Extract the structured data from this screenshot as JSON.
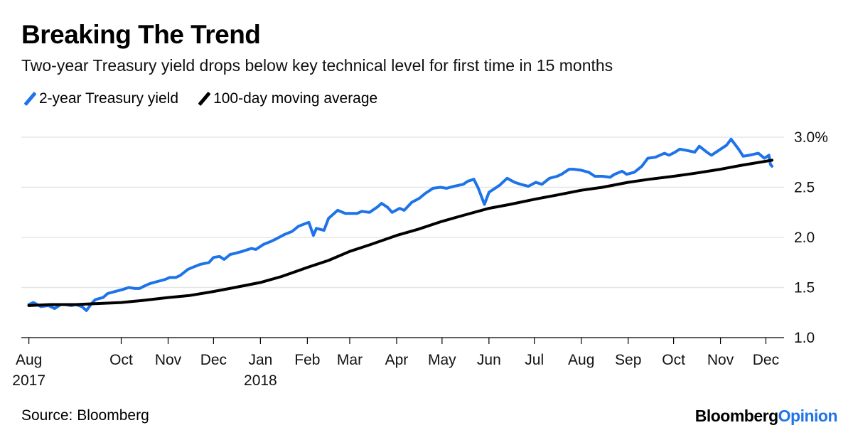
{
  "header": {
    "title": "Breaking The Trend",
    "subtitle": "Two-year Treasury yield drops below key technical level for first time in 15 months"
  },
  "footer": {
    "source": "Source: Bloomberg",
    "brand_part1": "Bloomberg",
    "brand_part2": "Opinion"
  },
  "chart_data": {
    "type": "line",
    "title": "Breaking The Trend",
    "subtitle": "Two-year Treasury yield drops below key technical level for first time in 15 months",
    "ylim": [
      1.0,
      3.0
    ],
    "yticks": [
      1.0,
      1.5,
      2.0,
      2.5,
      3.0
    ],
    "ytick_labels": [
      "1.0",
      "1.5",
      "2.0",
      "2.5",
      "3.0%"
    ],
    "xlim": [
      "2017-07-27",
      "2018-12-13"
    ],
    "xticks": [
      {
        "date": "2017-08-01",
        "label": "Aug",
        "sublabel": "2017"
      },
      {
        "date": "2017-10-01",
        "label": "Oct"
      },
      {
        "date": "2017-11-01",
        "label": "Nov"
      },
      {
        "date": "2017-12-01",
        "label": "Dec"
      },
      {
        "date": "2018-01-01",
        "label": "Jan",
        "sublabel": "2018"
      },
      {
        "date": "2018-02-01",
        "label": "Feb"
      },
      {
        "date": "2018-03-01",
        "label": "Mar"
      },
      {
        "date": "2018-04-01",
        "label": "Apr"
      },
      {
        "date": "2018-05-01",
        "label": "May"
      },
      {
        "date": "2018-06-01",
        "label": "Jun"
      },
      {
        "date": "2018-07-01",
        "label": "Jul"
      },
      {
        "date": "2018-08-01",
        "label": "Aug"
      },
      {
        "date": "2018-09-01",
        "label": "Sep"
      },
      {
        "date": "2018-10-01",
        "label": "Oct"
      },
      {
        "date": "2018-11-01",
        "label": "Nov"
      },
      {
        "date": "2018-12-01",
        "label": "Dec"
      }
    ],
    "grid": true,
    "legend_position": "top-left",
    "series": [
      {
        "name": "2-year Treasury yield",
        "color": "#1e73e8",
        "points": [
          [
            "2017-08-01",
            1.33
          ],
          [
            "2017-08-04",
            1.35
          ],
          [
            "2017-08-09",
            1.31
          ],
          [
            "2017-08-14",
            1.32
          ],
          [
            "2017-08-18",
            1.29
          ],
          [
            "2017-08-22",
            1.33
          ],
          [
            "2017-08-25",
            1.33
          ],
          [
            "2017-08-29",
            1.32
          ],
          [
            "2017-09-01",
            1.33
          ],
          [
            "2017-09-05",
            1.31
          ],
          [
            "2017-09-08",
            1.27
          ],
          [
            "2017-09-12",
            1.35
          ],
          [
            "2017-09-14",
            1.38
          ],
          [
            "2017-09-19",
            1.4
          ],
          [
            "2017-09-22",
            1.44
          ],
          [
            "2017-09-27",
            1.46
          ],
          [
            "2017-10-02",
            1.48
          ],
          [
            "2017-10-06",
            1.5
          ],
          [
            "2017-10-10",
            1.49
          ],
          [
            "2017-10-13",
            1.49
          ],
          [
            "2017-10-17",
            1.52
          ],
          [
            "2017-10-20",
            1.54
          ],
          [
            "2017-10-25",
            1.56
          ],
          [
            "2017-10-30",
            1.58
          ],
          [
            "2017-11-02",
            1.6
          ],
          [
            "2017-11-06",
            1.6
          ],
          [
            "2017-11-09",
            1.62
          ],
          [
            "2017-11-14",
            1.68
          ],
          [
            "2017-11-17",
            1.7
          ],
          [
            "2017-11-22",
            1.73
          ],
          [
            "2017-11-28",
            1.75
          ],
          [
            "2017-12-01",
            1.8
          ],
          [
            "2017-12-05",
            1.81
          ],
          [
            "2017-12-08",
            1.78
          ],
          [
            "2017-12-12",
            1.83
          ],
          [
            "2017-12-15",
            1.84
          ],
          [
            "2017-12-20",
            1.86
          ],
          [
            "2017-12-26",
            1.89
          ],
          [
            "2017-12-29",
            1.88
          ],
          [
            "2018-01-03",
            1.93
          ],
          [
            "2018-01-08",
            1.96
          ],
          [
            "2018-01-12",
            1.99
          ],
          [
            "2018-01-17",
            2.03
          ],
          [
            "2018-01-22",
            2.06
          ],
          [
            "2018-01-26",
            2.11
          ],
          [
            "2018-01-31",
            2.14
          ],
          [
            "2018-02-02",
            2.15
          ],
          [
            "2018-02-05",
            2.02
          ],
          [
            "2018-02-07",
            2.09
          ],
          [
            "2018-02-12",
            2.07
          ],
          [
            "2018-02-15",
            2.19
          ],
          [
            "2018-02-21",
            2.27
          ],
          [
            "2018-02-26",
            2.24
          ],
          [
            "2018-03-01",
            2.24
          ],
          [
            "2018-03-06",
            2.24
          ],
          [
            "2018-03-09",
            2.26
          ],
          [
            "2018-03-14",
            2.25
          ],
          [
            "2018-03-19",
            2.3
          ],
          [
            "2018-03-22",
            2.34
          ],
          [
            "2018-03-26",
            2.3
          ],
          [
            "2018-03-29",
            2.25
          ],
          [
            "2018-04-03",
            2.29
          ],
          [
            "2018-04-06",
            2.27
          ],
          [
            "2018-04-11",
            2.35
          ],
          [
            "2018-04-16",
            2.39
          ],
          [
            "2018-04-20",
            2.44
          ],
          [
            "2018-04-25",
            2.49
          ],
          [
            "2018-04-30",
            2.5
          ],
          [
            "2018-05-04",
            2.49
          ],
          [
            "2018-05-09",
            2.51
          ],
          [
            "2018-05-15",
            2.53
          ],
          [
            "2018-05-18",
            2.56
          ],
          [
            "2018-05-22",
            2.58
          ],
          [
            "2018-05-25",
            2.49
          ],
          [
            "2018-05-29",
            2.33
          ],
          [
            "2018-06-01",
            2.45
          ],
          [
            "2018-06-05",
            2.49
          ],
          [
            "2018-06-08",
            2.52
          ],
          [
            "2018-06-13",
            2.59
          ],
          [
            "2018-06-18",
            2.55
          ],
          [
            "2018-06-22",
            2.53
          ],
          [
            "2018-06-27",
            2.51
          ],
          [
            "2018-07-02",
            2.55
          ],
          [
            "2018-07-06",
            2.53
          ],
          [
            "2018-07-11",
            2.59
          ],
          [
            "2018-07-16",
            2.61
          ],
          [
            "2018-07-19",
            2.63
          ],
          [
            "2018-07-24",
            2.68
          ],
          [
            "2018-07-27",
            2.68
          ],
          [
            "2018-08-01",
            2.67
          ],
          [
            "2018-08-06",
            2.65
          ],
          [
            "2018-08-10",
            2.61
          ],
          [
            "2018-08-15",
            2.61
          ],
          [
            "2018-08-20",
            2.6
          ],
          [
            "2018-08-23",
            2.63
          ],
          [
            "2018-08-28",
            2.66
          ],
          [
            "2018-08-31",
            2.63
          ],
          [
            "2018-09-05",
            2.65
          ],
          [
            "2018-09-10",
            2.71
          ],
          [
            "2018-09-14",
            2.79
          ],
          [
            "2018-09-19",
            2.8
          ],
          [
            "2018-09-25",
            2.84
          ],
          [
            "2018-09-28",
            2.82
          ],
          [
            "2018-10-02",
            2.85
          ],
          [
            "2018-10-05",
            2.88
          ],
          [
            "2018-10-09",
            2.87
          ],
          [
            "2018-10-15",
            2.85
          ],
          [
            "2018-10-18",
            2.91
          ],
          [
            "2018-10-23",
            2.85
          ],
          [
            "2018-10-26",
            2.82
          ],
          [
            "2018-10-31",
            2.87
          ],
          [
            "2018-11-05",
            2.92
          ],
          [
            "2018-11-08",
            2.98
          ],
          [
            "2018-11-13",
            2.88
          ],
          [
            "2018-11-16",
            2.81
          ],
          [
            "2018-11-20",
            2.82
          ],
          [
            "2018-11-26",
            2.84
          ],
          [
            "2018-11-30",
            2.79
          ],
          [
            "2018-12-03",
            2.82
          ],
          [
            "2018-12-04",
            2.73
          ],
          [
            "2018-12-05",
            2.71
          ]
        ]
      },
      {
        "name": "100-day moving average",
        "color": "#000000",
        "points": [
          [
            "2017-08-01",
            1.32
          ],
          [
            "2017-08-15",
            1.33
          ],
          [
            "2017-09-01",
            1.33
          ],
          [
            "2017-09-15",
            1.34
          ],
          [
            "2017-10-01",
            1.35
          ],
          [
            "2017-10-15",
            1.37
          ],
          [
            "2017-11-01",
            1.4
          ],
          [
            "2017-11-15",
            1.42
          ],
          [
            "2017-12-01",
            1.46
          ],
          [
            "2017-12-15",
            1.5
          ],
          [
            "2018-01-01",
            1.55
          ],
          [
            "2018-01-15",
            1.61
          ],
          [
            "2018-02-01",
            1.7
          ],
          [
            "2018-02-15",
            1.77
          ],
          [
            "2018-03-01",
            1.86
          ],
          [
            "2018-03-15",
            1.93
          ],
          [
            "2018-04-01",
            2.02
          ],
          [
            "2018-04-15",
            2.08
          ],
          [
            "2018-05-01",
            2.16
          ],
          [
            "2018-05-15",
            2.22
          ],
          [
            "2018-06-01",
            2.29
          ],
          [
            "2018-06-15",
            2.33
          ],
          [
            "2018-07-01",
            2.38
          ],
          [
            "2018-07-15",
            2.42
          ],
          [
            "2018-08-01",
            2.47
          ],
          [
            "2018-08-15",
            2.5
          ],
          [
            "2018-09-01",
            2.55
          ],
          [
            "2018-09-15",
            2.58
          ],
          [
            "2018-10-01",
            2.61
          ],
          [
            "2018-10-15",
            2.64
          ],
          [
            "2018-11-01",
            2.68
          ],
          [
            "2018-11-15",
            2.72
          ],
          [
            "2018-12-01",
            2.76
          ],
          [
            "2018-12-05",
            2.77
          ]
        ]
      }
    ]
  }
}
